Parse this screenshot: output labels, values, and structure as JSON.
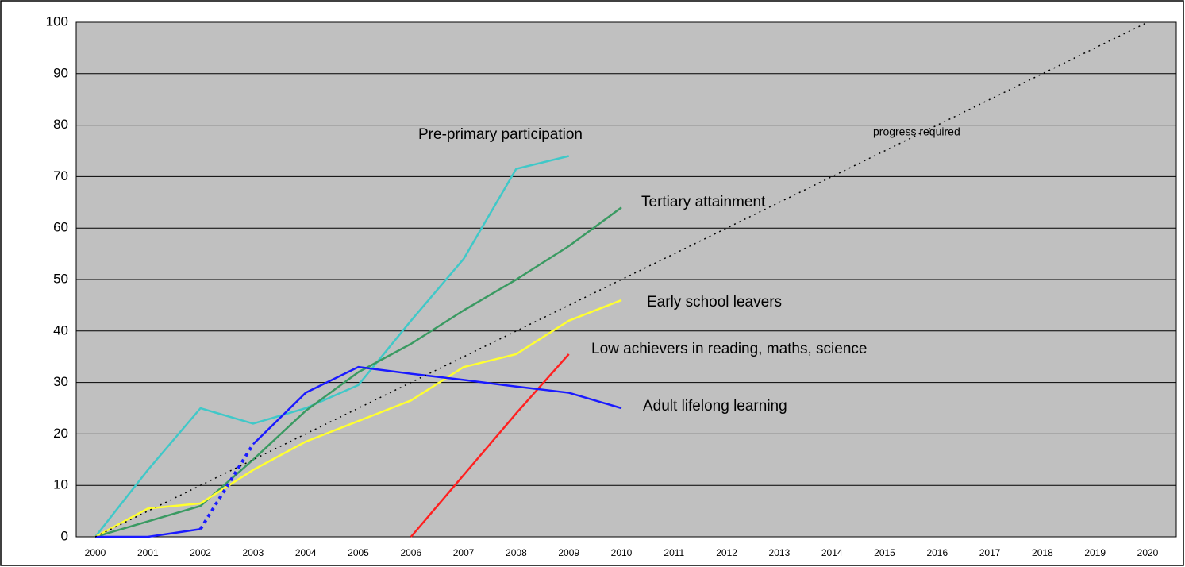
{
  "chart_data": {
    "type": "line",
    "categories": [
      "2000",
      "2001",
      "2002",
      "2003",
      "2004",
      "2005",
      "2006",
      "2007",
      "2008",
      "2009",
      "2010",
      "2011",
      "2012",
      "2013",
      "2014",
      "2015",
      "2016",
      "2017",
      "2018",
      "2019",
      "2020"
    ],
    "ylim": [
      0,
      100
    ],
    "yticks": [
      0,
      10,
      20,
      30,
      40,
      50,
      60,
      70,
      80,
      90,
      100
    ],
    "grid": true,
    "background": "#c0c0c0",
    "series": [
      {
        "name": "Pre-primary participation",
        "color": "#40c8c8",
        "values": [
          0,
          13,
          25,
          22,
          25,
          29.5,
          42,
          54,
          71.5,
          74,
          null,
          null,
          null,
          null,
          null,
          null,
          null,
          null,
          null,
          null,
          null
        ]
      },
      {
        "name": "Tertiary attainment",
        "color": "#3a9a62",
        "values": [
          0,
          3,
          6,
          15,
          24.5,
          32,
          37.5,
          44,
          50,
          56.5,
          64,
          null,
          null,
          null,
          null,
          null,
          null,
          null,
          null,
          null,
          null
        ]
      },
      {
        "name": "Early school leavers",
        "color": "#ffff30",
        "values": [
          0,
          5.5,
          6.5,
          13,
          18.5,
          22.5,
          26.5,
          33,
          35.5,
          42,
          46,
          null,
          null,
          null,
          null,
          null,
          null,
          null,
          null,
          null,
          null
        ]
      },
      {
        "name": "Low achievers in reading, maths, science",
        "color": "#ff2020",
        "values": [
          null,
          null,
          null,
          null,
          null,
          null,
          0,
          12,
          24,
          35.5,
          null,
          null,
          null,
          null,
          null,
          null,
          null,
          null,
          null,
          null,
          null
        ]
      },
      {
        "name": "Adult lifelong learning",
        "color": "#1a1aff",
        "values": [
          0,
          0,
          1.5,
          18,
          28,
          33,
          31.7,
          30.5,
          29.2,
          28,
          25,
          null,
          null,
          null,
          null,
          null,
          null,
          null,
          null,
          null,
          null
        ],
        "dotted_between": [
          2,
          3
        ]
      },
      {
        "name": "progress required",
        "color": "#000000",
        "dotted": true,
        "values": [
          0,
          5,
          10,
          15,
          20,
          25,
          30,
          35,
          40,
          45,
          50,
          55,
          60,
          65,
          70,
          75,
          80,
          85,
          90,
          95,
          100
        ]
      }
    ]
  }
}
